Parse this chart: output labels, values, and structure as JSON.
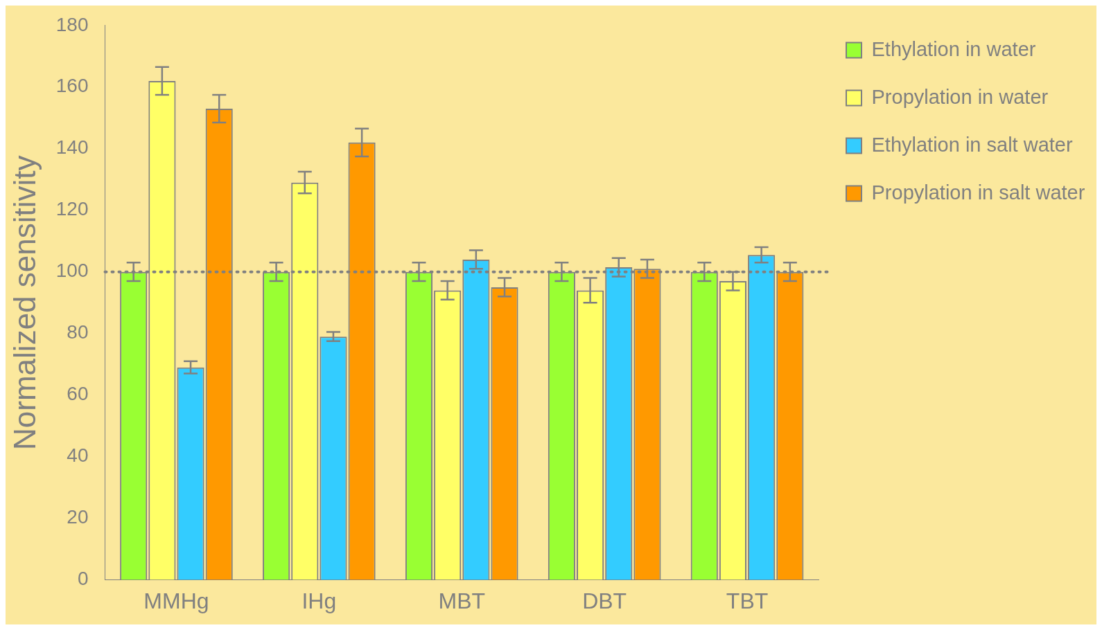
{
  "chart_data": {
    "type": "bar",
    "ylabel": "Normalized sensitivity",
    "categories": [
      "MMHg",
      "IHg",
      "MBT",
      "DBT",
      "TBT"
    ],
    "series": [
      {
        "name": "Ethylation in water",
        "color": "#99ff33",
        "values": [
          100,
          100,
          100,
          100,
          100
        ],
        "errors": [
          3,
          3,
          3,
          3,
          3
        ]
      },
      {
        "name": "Propylation in water",
        "color": "#ffff66",
        "values": [
          162,
          129,
          94,
          94,
          97
        ],
        "errors": [
          4.5,
          3.5,
          3,
          4,
          3
        ]
      },
      {
        "name": "Ethylation in salt water",
        "color": "#33ccff",
        "values": [
          69,
          79,
          104,
          101.5,
          105.5
        ],
        "errors": [
          2,
          1.5,
          3,
          3,
          2.5
        ]
      },
      {
        "name": "Propylation in salt water",
        "color": "#ff9900",
        "values": [
          153,
          142,
          95,
          101,
          100
        ],
        "errors": [
          4.5,
          4.5,
          3,
          3,
          3
        ]
      }
    ],
    "ylim": [
      0,
      180
    ],
    "yticks": [
      0,
      20,
      40,
      60,
      80,
      100,
      120,
      140,
      160,
      180
    ],
    "grid": false,
    "legend": "top right",
    "ref_lines": [
      {
        "axis": "y",
        "value": 100,
        "color": "#808080",
        "line_style": "dotted"
      }
    ]
  }
}
